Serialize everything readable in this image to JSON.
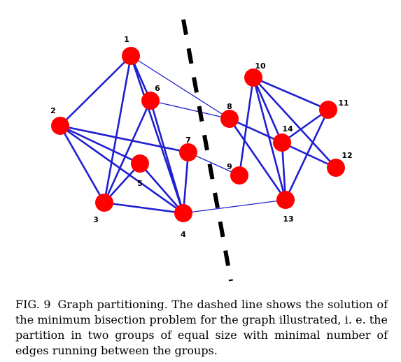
{
  "graph": {
    "nodes": [
      {
        "id": "1"
      },
      {
        "id": "2"
      },
      {
        "id": "3"
      },
      {
        "id": "4"
      },
      {
        "id": "5"
      },
      {
        "id": "6"
      },
      {
        "id": "7"
      },
      {
        "id": "8"
      },
      {
        "id": "9"
      },
      {
        "id": "10"
      },
      {
        "id": "11"
      },
      {
        "id": "12"
      },
      {
        "id": "13"
      },
      {
        "id": "14"
      }
    ],
    "edges": [
      [
        "1",
        "2"
      ],
      [
        "1",
        "3"
      ],
      [
        "1",
        "6"
      ],
      [
        "1",
        "4"
      ],
      [
        "2",
        "7"
      ],
      [
        "2",
        "5"
      ],
      [
        "2",
        "3"
      ],
      [
        "2",
        "4"
      ],
      [
        "3",
        "5"
      ],
      [
        "3",
        "6"
      ],
      [
        "3",
        "4"
      ],
      [
        "6",
        "4"
      ],
      [
        "7",
        "4"
      ],
      [
        "5",
        "4"
      ],
      [
        "10",
        "9"
      ],
      [
        "10",
        "11"
      ],
      [
        "10",
        "14"
      ],
      [
        "10",
        "13"
      ],
      [
        "10",
        "12"
      ],
      [
        "8",
        "14"
      ],
      [
        "8",
        "13"
      ],
      [
        "11",
        "14"
      ],
      [
        "11",
        "13"
      ],
      [
        "14",
        "12"
      ],
      [
        "14",
        "13"
      ]
    ],
    "cut_edges": [
      [
        "1",
        "8"
      ],
      [
        "6",
        "8"
      ],
      [
        "7",
        "9"
      ],
      [
        "4",
        "13"
      ]
    ],
    "node_color": "#ff0000",
    "edge_color": "#1f1fd0",
    "cut_line_color": "#000000"
  },
  "caption": {
    "label": "FIG. 9",
    "text": "Graph partitioning. The dashed line shows the solution of the minimum bisection problem for the graph illustrated, i. e. the partition in two groups of equal size with minimal number of edges running between the groups."
  }
}
